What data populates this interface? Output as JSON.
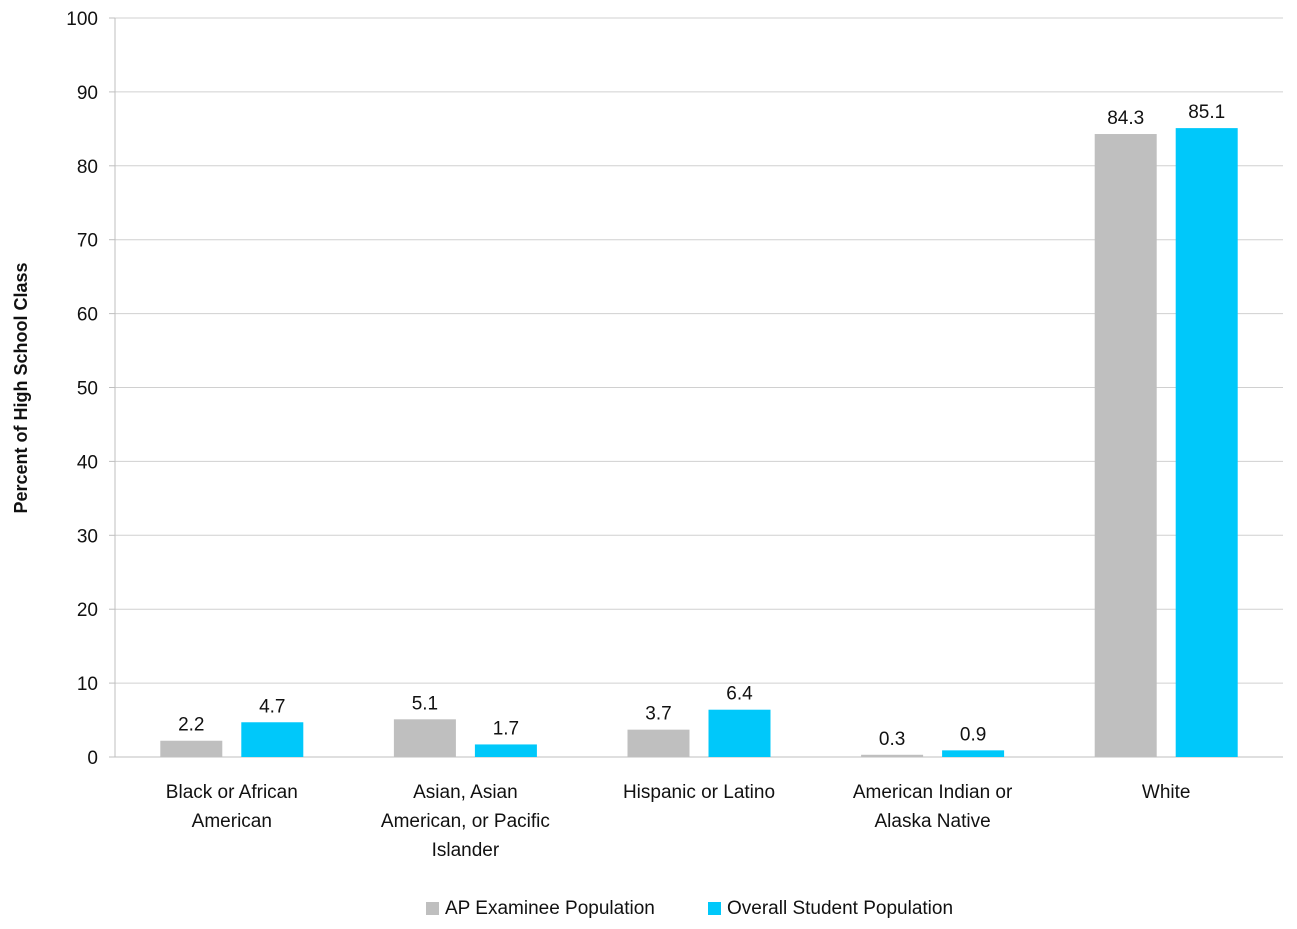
{
  "chart_data": {
    "type": "bar",
    "title": "",
    "xlabel": "",
    "ylabel": "Percent of High School Class",
    "ylim": [
      0,
      100
    ],
    "yticks": [
      0,
      10,
      20,
      30,
      40,
      50,
      60,
      70,
      80,
      90,
      100
    ],
    "grid": true,
    "legend_position": "bottom",
    "categories": [
      [
        "Black or African",
        "American"
      ],
      [
        "Asian, Asian",
        "American, or Pacific",
        "Islander"
      ],
      [
        "Hispanic or Latino"
      ],
      [
        "American Indian or",
        "Alaska Native"
      ],
      [
        "White"
      ]
    ],
    "series": [
      {
        "name": "AP Examinee Population",
        "color": "#bfbfbf",
        "values": [
          2.2,
          5.1,
          3.7,
          0.3,
          84.3
        ],
        "labels": [
          "2.2",
          "5.1",
          "3.7",
          "0.3",
          "84.3"
        ]
      },
      {
        "name": "Overall Student Population",
        "color": "#00c8fa",
        "values": [
          4.7,
          1.7,
          6.4,
          0.9,
          85.1
        ],
        "labels": [
          "4.7",
          "1.7",
          "6.4",
          "0.9",
          "85.1"
        ]
      }
    ]
  }
}
